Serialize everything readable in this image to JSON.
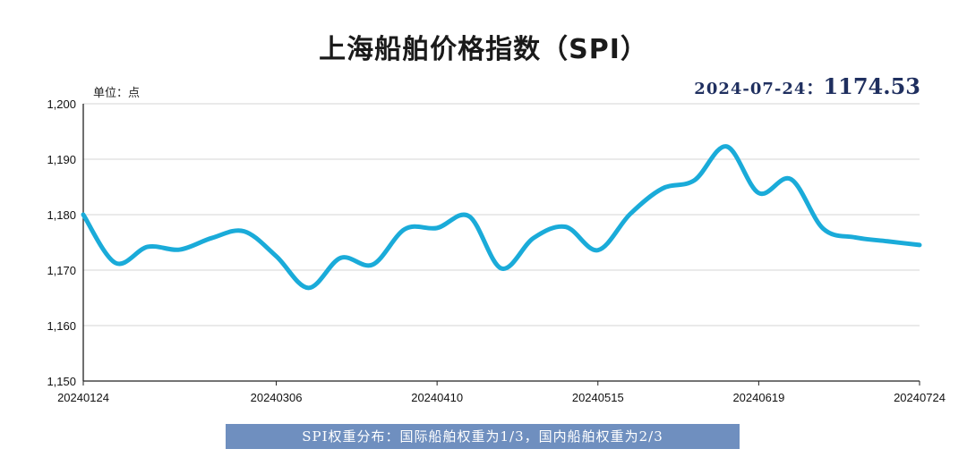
{
  "chart_data": {
    "type": "line",
    "title": "上海船舶价格指数（SPI）",
    "unit_label": "单位：点",
    "headline": {
      "date": "2024-07-24：",
      "value": "1174.53"
    },
    "ylim": [
      1150,
      1200
    ],
    "yticks": [
      1150,
      1160,
      1170,
      1180,
      1190,
      1200
    ],
    "ytick_labels": [
      "1,150",
      "1,160",
      "1,170",
      "1,180",
      "1,190",
      "1,200"
    ],
    "xtick_labels": [
      "20240124",
      "20240306",
      "20240410",
      "20240515",
      "20240619",
      "20240724"
    ],
    "grid": "horizontal",
    "line_color": "#1aabd9",
    "series": [
      {
        "x": [
          "20240124",
          "20240131",
          "20240207",
          "20240214",
          "20240221",
          "20240228",
          "20240306",
          "20240313",
          "20240320",
          "20240327",
          "20240403",
          "20240410",
          "20240417",
          "20240424",
          "20240501",
          "20240508",
          "20240515",
          "20240522",
          "20240529",
          "20240605",
          "20240612",
          "20240619",
          "20240626",
          "20240703",
          "20240710",
          "20240717",
          "20240724"
        ],
        "values": [
          1180,
          1171.3,
          1174.2,
          1173.7,
          1175.8,
          1177.0,
          1172.5,
          1166.8,
          1172.2,
          1171.0,
          1177.4,
          1177.6,
          1179.7,
          1170.3,
          1175.8,
          1177.8,
          1173.6,
          1180.1,
          1184.7,
          1186.2,
          1192.3,
          1183.9,
          1186.4,
          1177.5,
          1175.9,
          1175.2,
          1174.53
        ]
      }
    ],
    "footnote": "SPI权重分布：国际船舶权重为1/3，国内船舶权重为2/3"
  }
}
